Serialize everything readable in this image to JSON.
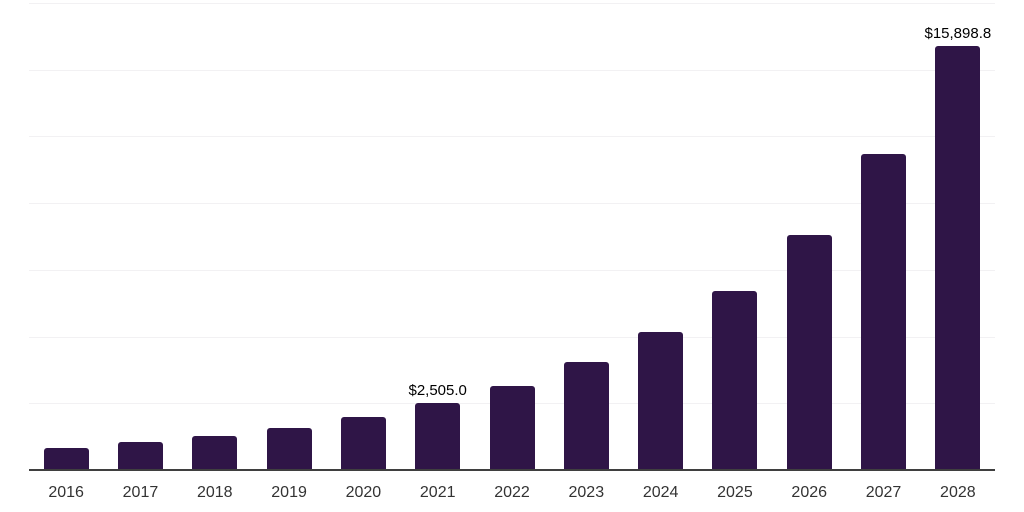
{
  "chart_style": {
    "background_color": "#ffffff",
    "bar_color": "#2f1547",
    "gridline_color": "#f2f1f3",
    "axis_color": "#3f3f3f",
    "tick_label_color": "#333333",
    "data_label_color": "#000000"
  },
  "chart_data": {
    "type": "bar",
    "title": "",
    "xlabel": "",
    "ylabel": "",
    "categories": [
      "2016",
      "2017",
      "2018",
      "2019",
      "2020",
      "2021",
      "2022",
      "2023",
      "2024",
      "2025",
      "2026",
      "2027",
      "2028"
    ],
    "values": [
      810,
      1040,
      1275,
      1565,
      2000,
      2505.0,
      3150,
      4050,
      5175,
      6725,
      8825,
      11825,
      15898.8
    ],
    "data_labels": {
      "2021": "$2,505.0",
      "2028": "$15,898.8"
    },
    "ylim": [
      0,
      17500
    ],
    "grid_step": 2500,
    "grid": true,
    "legend": "none",
    "y_axis_tick_labels_visible": false
  }
}
